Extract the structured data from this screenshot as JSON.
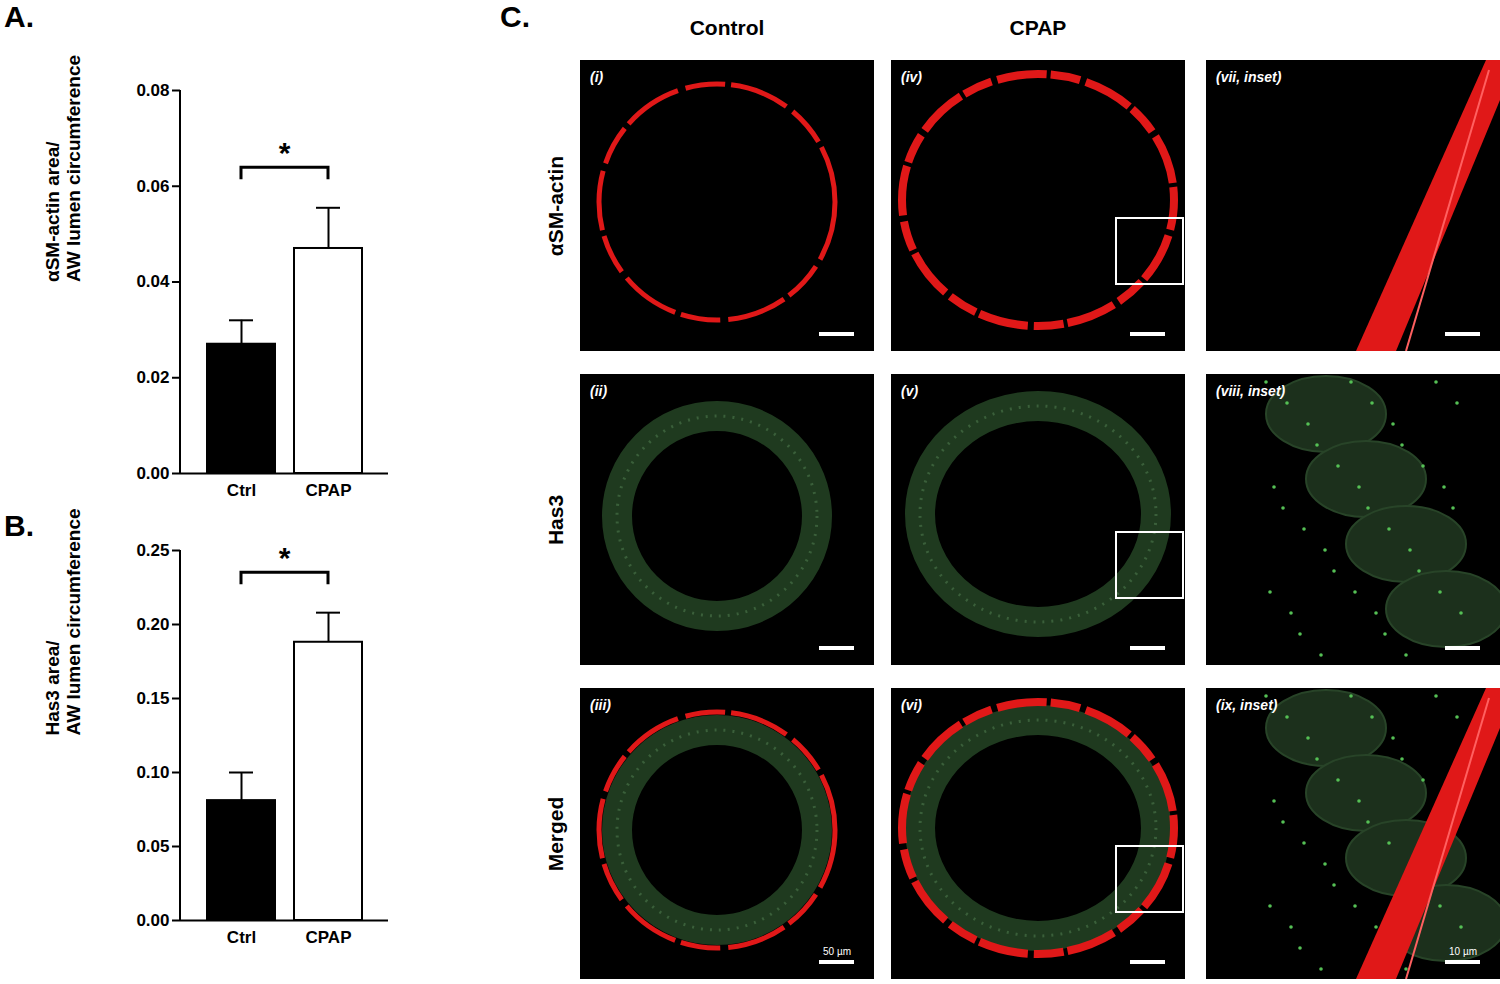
{
  "chart_data": [
    {
      "type": "bar",
      "title": "A.",
      "ylabel": "αSM-actin area/\nAW lumen circumference",
      "categories": [
        "Ctrl",
        "CPAP"
      ],
      "values": [
        0.027,
        0.047
      ],
      "errors": [
        0.005,
        0.0085
      ],
      "colors": [
        "#000000",
        "#ffffff"
      ],
      "ylim": [
        0,
        0.08
      ],
      "yticks": [
        {
          "value": 0,
          "label": "0.00"
        },
        {
          "value": 0.02,
          "label": "0.02"
        },
        {
          "value": 0.04,
          "label": "0.04"
        },
        {
          "value": 0.06,
          "label": "0.06"
        },
        {
          "value": 0.08,
          "label": "0.08"
        }
      ],
      "annotations": [
        {
          "text": "*",
          "from": "Ctrl",
          "to": "CPAP"
        }
      ]
    },
    {
      "type": "bar",
      "title": "B.",
      "ylabel": "Has3 area/\nAW lumen circumference",
      "categories": [
        "Ctrl",
        "CPAP"
      ],
      "values": [
        0.081,
        0.188
      ],
      "errors": [
        0.019,
        0.02
      ],
      "colors": [
        "#000000",
        "#ffffff"
      ],
      "ylim": [
        0,
        0.25
      ],
      "yticks": [
        {
          "value": 0,
          "label": "0.00"
        },
        {
          "value": 0.05,
          "label": "0.05"
        },
        {
          "value": 0.1,
          "label": "0.10"
        },
        {
          "value": 0.15,
          "label": "0.15"
        },
        {
          "value": 0.2,
          "label": "0.20"
        },
        {
          "value": 0.25,
          "label": "0.25"
        }
      ],
      "annotations": [
        {
          "text": "*",
          "from": "Ctrl",
          "to": "CPAP"
        }
      ]
    }
  ],
  "panel_c": {
    "label": "C.",
    "columns": [
      "Control",
      "CPAP"
    ],
    "rows": [
      "αSM-actin",
      "Has3",
      "Merged"
    ],
    "panels": [
      [
        "(i)",
        "(iv)",
        "(vii, inset)"
      ],
      [
        "(ii)",
        "(v)",
        "(viii, inset)"
      ],
      [
        "(iii)",
        "(vi)",
        "(ix, inset)"
      ]
    ],
    "scale_bars": {
      "(iii)": "50 µm",
      "(ix, inset)": "10 µm"
    }
  }
}
